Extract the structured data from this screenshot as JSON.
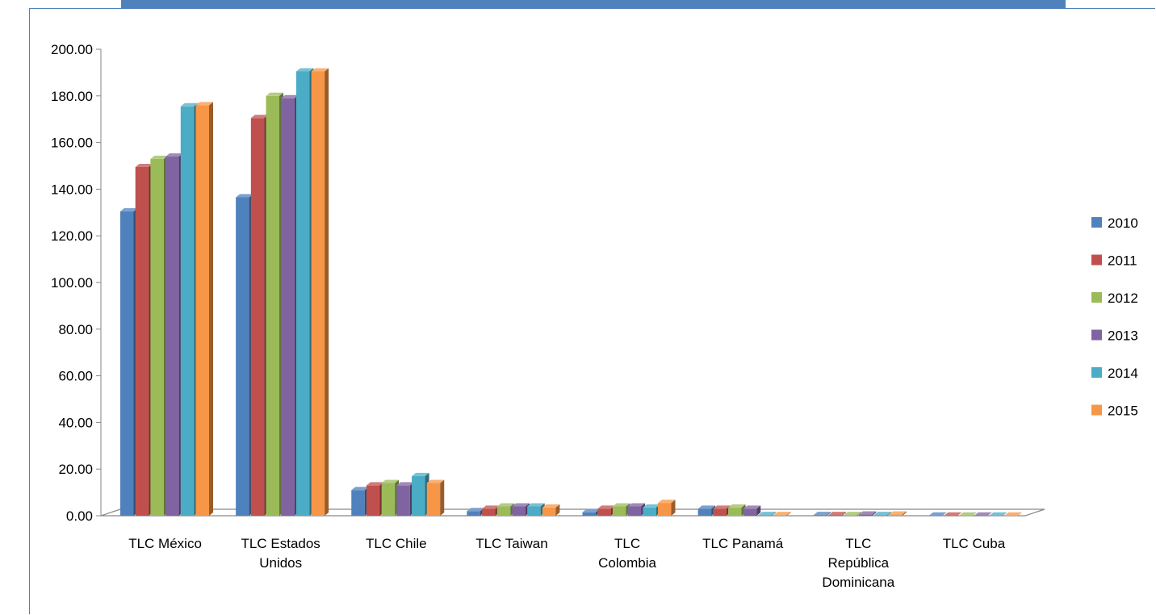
{
  "chart_data": {
    "type": "bar",
    "categories": [
      [
        "TLC México"
      ],
      [
        "TLC Estados",
        "Unidos"
      ],
      [
        "TLC Chile"
      ],
      [
        "TLC Taiwan"
      ],
      [
        "TLC",
        "Colombia"
      ],
      [
        "TLC Panamá"
      ],
      [
        "TLC",
        "República",
        "Dominicana"
      ],
      [
        "TLC Cuba"
      ]
    ],
    "series": [
      {
        "name": "2010",
        "color": "#4f81bd",
        "values": [
          130.5,
          136.5,
          11.0,
          2.0,
          1.5,
          3.0,
          0.3,
          0.1
        ]
      },
      {
        "name": "2011",
        "color": "#c0504d",
        "values": [
          149.5,
          170.5,
          13.0,
          3.0,
          3.0,
          3.0,
          0.3,
          0.1
        ]
      },
      {
        "name": "2012",
        "color": "#9bbb59",
        "values": [
          153.0,
          180.0,
          14.0,
          4.0,
          4.0,
          3.5,
          0.3,
          0.1
        ]
      },
      {
        "name": "2013",
        "color": "#8064a2",
        "values": [
          154.0,
          179.0,
          13.0,
          4.0,
          4.0,
          3.0,
          0.5,
          0.1
        ]
      },
      {
        "name": "2014",
        "color": "#4bacc6",
        "values": [
          175.5,
          190.5,
          17.0,
          4.0,
          3.5,
          0.3,
          0.3,
          0.1
        ]
      },
      {
        "name": "2015",
        "color": "#f79646",
        "values": [
          176.0,
          190.5,
          14.0,
          3.5,
          5.5,
          0.3,
          0.5,
          0.1
        ]
      }
    ],
    "y_ticks": [
      "0.00",
      "20.00",
      "40.00",
      "60.00",
      "80.00",
      "100.00",
      "120.00",
      "140.00",
      "160.00",
      "180.00",
      "200.00"
    ],
    "ylim": [
      0,
      200
    ],
    "grid": false,
    "legend_position": "right"
  }
}
